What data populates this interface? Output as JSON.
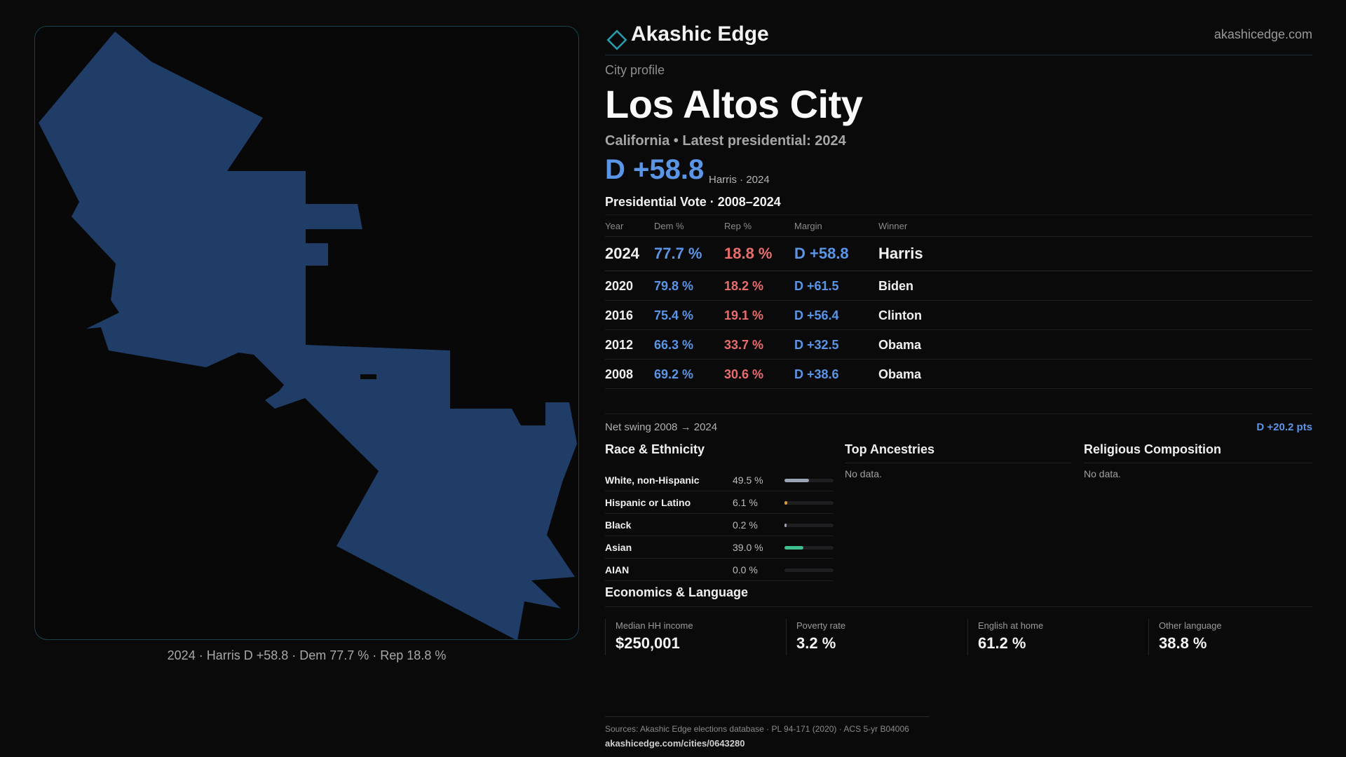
{
  "map": {
    "fill_color": "#1f3d66",
    "caption": "2024 · Harris D +58.8 · Dem 77.7 % · Rep 18.8 %"
  },
  "header": {
    "brand": "Akashic Edge",
    "site": "akashicedge.com",
    "eyebrow": "City profile",
    "city": "Los Altos City",
    "subtitle": "California • Latest presidential: 2024",
    "margin": "D +58.8",
    "margin_note": "Harris · 2024"
  },
  "vote": {
    "title": "Presidential Vote · 2008–2024",
    "columns": {
      "year": "Year",
      "dem": "Dem %",
      "rep": "Rep %",
      "margin": "Margin",
      "winner": "Winner"
    },
    "rows": [
      {
        "year": "2024",
        "dem": "77.7 %",
        "rep": "18.8 %",
        "margin": "D +58.8",
        "winner": "Harris"
      },
      {
        "year": "2020",
        "dem": "79.8 %",
        "rep": "18.2 %",
        "margin": "D +61.5",
        "winner": "Biden"
      },
      {
        "year": "2016",
        "dem": "75.4 %",
        "rep": "19.1 %",
        "margin": "D +56.4",
        "winner": "Clinton"
      },
      {
        "year": "2012",
        "dem": "66.3 %",
        "rep": "33.7 %",
        "margin": "D +32.5",
        "winner": "Obama"
      },
      {
        "year": "2008",
        "dem": "69.2 %",
        "rep": "30.6 %",
        "margin": "D +38.6",
        "winner": "Obama"
      }
    ],
    "swing_label": "Net swing 2008 → 2024",
    "swing_value": "D +20.2 pts"
  },
  "race": {
    "title": "Race & Ethnicity",
    "rows": [
      {
        "label": "White, non-Hispanic",
        "value": "49.5 %",
        "fraction": 0.495,
        "color": "#9aa3b3"
      },
      {
        "label": "Hispanic or Latino",
        "value": "6.1 %",
        "fraction": 0.061,
        "color": "#d39a3a"
      },
      {
        "label": "Black",
        "value": "0.2 %",
        "fraction": 0.002,
        "color": "#9aa3b3"
      },
      {
        "label": "Asian",
        "value": "39.0 %",
        "fraction": 0.39,
        "color": "#3fbf8f"
      },
      {
        "label": "AIAN",
        "value": "0.0 %",
        "fraction": 0.0,
        "color": "#9aa3b3"
      }
    ]
  },
  "ancestries": {
    "title": "Top Ancestries",
    "empty": "No data."
  },
  "religion": {
    "title": "Religious Composition",
    "empty": "No data."
  },
  "economics": {
    "title": "Economics & Language",
    "cards": [
      {
        "label": "Median HH income",
        "value": "$250,001"
      },
      {
        "label": "Poverty rate",
        "value": "3.2 %"
      },
      {
        "label": "English at home",
        "value": "61.2 %"
      },
      {
        "label": "Other language",
        "value": "38.8 %"
      }
    ]
  },
  "footer": {
    "sources": "Sources: Akashic Edge elections database · PL 94-171 (2020) · ACS 5-yr B04006",
    "url": "akashicedge.com/cities/0643280"
  }
}
